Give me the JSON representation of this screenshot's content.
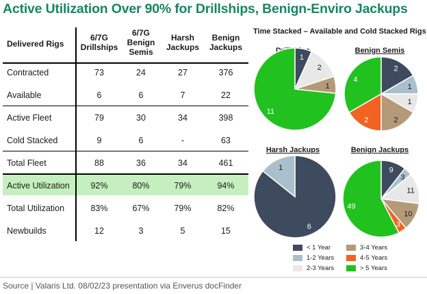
{
  "title": "Active Utilization Over 90% for Drillships, Benign-Enviro Jackups",
  "table": {
    "corner": "Delivered Rigs",
    "columns": [
      [
        "6/7G",
        "Drillships"
      ],
      [
        "6/7G",
        "Benign",
        "Semis"
      ],
      [
        "Harsh",
        "Jackups"
      ],
      [
        "Benign",
        "Jackups"
      ]
    ],
    "rows": [
      {
        "label": "Contracted",
        "values": [
          "73",
          "24",
          "27",
          "376"
        ]
      },
      {
        "label": "Available",
        "values": [
          "6",
          "6",
          "7",
          "22"
        ]
      },
      {
        "label": "Active Fleet",
        "values": [
          "79",
          "30",
          "34",
          "398"
        ]
      },
      {
        "label": "Cold Stacked",
        "values": [
          "9",
          "6",
          "-",
          "63"
        ]
      },
      {
        "label": "Total Fleet",
        "values": [
          "88",
          "36",
          "34",
          "461"
        ]
      },
      {
        "label": "Active Utilization",
        "values": [
          "92%",
          "80%",
          "79%",
          "94%"
        ]
      },
      {
        "label": "Total Utilization",
        "values": [
          "83%",
          "67%",
          "79%",
          "82%"
        ]
      },
      {
        "label": "Newbuilds",
        "values": [
          "12",
          "3",
          "5",
          "15"
        ]
      }
    ],
    "highlight_color": "#c6efc0"
  },
  "chart_data": {
    "type": "pie",
    "title": "Time Stacked – Available and Cold Stacked Rigs",
    "legend_position": "bottom",
    "categories": [
      "< 1 Year",
      "1-2 Years",
      "2-3 Years",
      "3-4 Years",
      "4-5 Years",
      "> 5 Years"
    ],
    "colors": [
      "#3e4a5e",
      "#a9bfcc",
      "#e8e8e8",
      "#b59a7a",
      "#f26322",
      "#21c21f"
    ],
    "pies": [
      {
        "name": "Drillships",
        "values": [
          1,
          0,
          2,
          1,
          0,
          11
        ]
      },
      {
        "name": "Benign Semis",
        "values": [
          2,
          1,
          1,
          2,
          2,
          4
        ]
      },
      {
        "name": "Harsh Jackups",
        "values": [
          6,
          1,
          0,
          0,
          0,
          0
        ]
      },
      {
        "name": "Benign Jackups",
        "values": [
          9,
          3,
          11,
          10,
          3,
          49
        ]
      }
    ]
  },
  "source": "Source | Valaris Ltd. 08/02/23 presentation via Enverus docFinder"
}
